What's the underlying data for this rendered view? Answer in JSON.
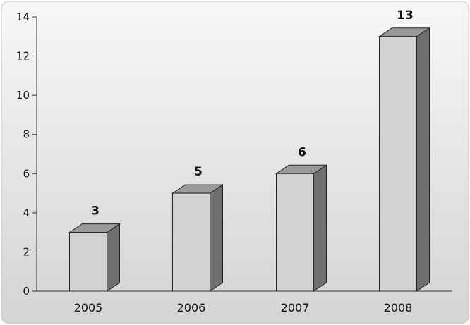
{
  "chart_data": {
    "type": "bar",
    "categories": [
      "2005",
      "2006",
      "2007",
      "2008"
    ],
    "values": [
      3,
      5,
      6,
      13
    ],
    "data_labels": [
      "3",
      "5",
      "6",
      "13"
    ],
    "ylim": [
      0,
      14
    ],
    "yticks": [
      "0",
      "2",
      "4",
      "6",
      "8",
      "10",
      "12",
      "14"
    ],
    "title": "",
    "xlabel": "",
    "ylabel": "",
    "grid": false,
    "legend": "none",
    "style": "3d",
    "colors": {
      "bar_front": "#d2d2d2",
      "bar_top": "#9a9a9a",
      "bar_side": "#6f6f6f",
      "bar_outline": "#222222",
      "background_top": "#f7f7f7",
      "background_bottom": "#d4d4d4",
      "axis": "#333333"
    }
  }
}
